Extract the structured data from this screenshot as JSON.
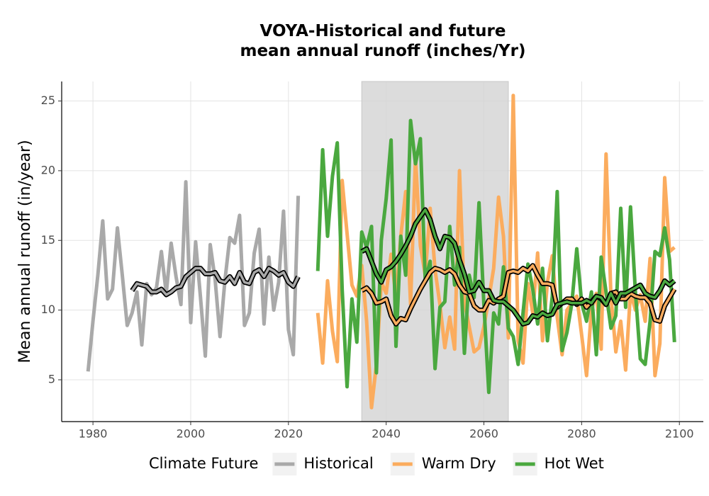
{
  "chart_data": {
    "type": "line",
    "title": "VOYA-Historical and future\nmean annual runoff (inches/Yr)",
    "y_label": "Mean annual runoff (in/year)",
    "legend_title": "Climate Future",
    "legend_position": "bottom",
    "grid": true,
    "shaded_range": [
      2035,
      2065
    ],
    "xlim": [
      1973.6,
      2104.9
    ],
    "ylim": [
      2.0,
      26.4
    ],
    "xticks": [
      1980,
      2000,
      2020,
      2040,
      2060,
      2080,
      2100
    ],
    "yticks": [
      5,
      10,
      15,
      20,
      25
    ],
    "series": [
      {
        "name": "Historical",
        "color": "#a9a9a9",
        "x": [
          1979,
          1980,
          1981,
          1982,
          1983,
          1984,
          1985,
          1986,
          1987,
          1988,
          1989,
          1990,
          1991,
          1992,
          1993,
          1994,
          1995,
          1996,
          1997,
          1998,
          1999,
          2000,
          2001,
          2002,
          2003,
          2004,
          2005,
          2006,
          2007,
          2008,
          2009,
          2010,
          2011,
          2012,
          2013,
          2014,
          2015,
          2016,
          2017,
          2018,
          2019,
          2020,
          2021,
          2022
        ],
        "values": [
          5.6,
          9.2,
          12.5,
          16.4,
          10.8,
          11.5,
          15.9,
          12.5,
          8.9,
          9.8,
          11.3,
          7.5,
          11.9,
          11.1,
          11.6,
          14.2,
          11.2,
          14.8,
          12.4,
          10.4,
          19.2,
          9.1,
          14.9,
          10.9,
          6.7,
          14.7,
          12.2,
          8.1,
          12.1,
          15.2,
          14.8,
          16.8,
          8.9,
          9.8,
          14.1,
          15.8,
          9.0,
          13.8,
          10.0,
          12.0,
          17.1,
          8.6,
          6.8,
          18.2
        ],
        "smoothed": [
          null,
          null,
          null,
          null,
          null,
          null,
          null,
          null,
          null,
          11.4,
          11.9,
          11.8,
          11.7,
          11.3,
          11.3,
          11.5,
          11.1,
          11.3,
          11.6,
          11.7,
          12.4,
          12.7,
          13.0,
          13.0,
          12.6,
          12.6,
          12.7,
          12.1,
          12.0,
          12.4,
          11.9,
          12.7,
          12.0,
          11.9,
          12.7,
          12.9,
          12.4,
          13.0,
          12.8,
          12.5,
          12.7,
          12.0,
          11.7,
          12.4
        ]
      },
      {
        "name": "Warm Dry",
        "color": "#fbac5e",
        "x": [
          2026,
          2027,
          2028,
          2029,
          2030,
          2031,
          2032,
          2033,
          2034,
          2035,
          2036,
          2037,
          2038,
          2039,
          2040,
          2041,
          2042,
          2043,
          2044,
          2045,
          2046,
          2047,
          2048,
          2049,
          2050,
          2051,
          2052,
          2053,
          2054,
          2055,
          2056,
          2057,
          2058,
          2059,
          2060,
          2061,
          2062,
          2063,
          2064,
          2065,
          2066,
          2067,
          2068,
          2069,
          2070,
          2071,
          2072,
          2073,
          2074,
          2075,
          2076,
          2077,
          2078,
          2079,
          2080,
          2081,
          2082,
          2083,
          2084,
          2085,
          2086,
          2087,
          2088,
          2089,
          2090,
          2091,
          2092,
          2093,
          2094,
          2095,
          2096,
          2097,
          2098,
          2099
        ],
        "values": [
          9.8,
          6.2,
          12.1,
          8.5,
          6.3,
          19.3,
          15.5,
          11.8,
          11.0,
          13.2,
          9.2,
          3.0,
          6.1,
          12.0,
          11.2,
          14.0,
          10.9,
          15.3,
          18.5,
          10.4,
          21.0,
          14.6,
          12.5,
          17.3,
          12.9,
          10.4,
          7.3,
          9.5,
          7.2,
          20.0,
          10.6,
          8.8,
          7.0,
          7.3,
          8.8,
          10.8,
          13.0,
          18.1,
          15.3,
          8.0,
          25.4,
          7.8,
          6.2,
          11.9,
          9.8,
          14.1,
          7.8,
          12.0,
          13.9,
          9.5,
          6.8,
          10.0,
          10.5,
          11.0,
          8.2,
          5.3,
          10.0,
          11.2,
          7.2,
          21.2,
          11.0,
          7.0,
          9.2,
          5.7,
          11.3,
          10.0,
          11.1,
          9.2,
          13.7,
          5.3,
          7.6,
          19.5,
          14.2,
          14.5
        ],
        "smoothed": [
          null,
          null,
          null,
          null,
          null,
          null,
          null,
          null,
          null,
          11.4,
          11.6,
          11.2,
          10.5,
          10.6,
          10.8,
          9.6,
          9.0,
          9.4,
          9.3,
          10.1,
          10.8,
          11.5,
          12.1,
          12.7,
          13.0,
          12.9,
          12.7,
          12.9,
          12.6,
          11.8,
          11.3,
          11.2,
          10.3,
          10.0,
          10.0,
          10.7,
          10.5,
          10.8,
          11.0,
          12.7,
          12.8,
          12.7,
          13.0,
          12.8,
          13.2,
          12.5,
          11.9,
          11.9,
          11.8,
          10.2,
          10.5,
          10.8,
          10.8,
          10.4,
          10.8,
          10.2,
          10.6,
          11.0,
          10.8,
          10.4,
          11.2,
          11.3,
          10.8,
          10.8,
          11.2,
          11.0,
          10.9,
          10.9,
          10.5,
          9.3,
          9.2,
          10.3,
          10.9,
          11.5
        ]
      },
      {
        "name": "Hot Wet",
        "color": "#4aa83f",
        "x": [
          2026,
          2027,
          2028,
          2029,
          2030,
          2031,
          2032,
          2033,
          2034,
          2035,
          2036,
          2037,
          2038,
          2039,
          2040,
          2041,
          2042,
          2043,
          2044,
          2045,
          2046,
          2047,
          2048,
          2049,
          2050,
          2051,
          2052,
          2053,
          2054,
          2055,
          2056,
          2057,
          2058,
          2059,
          2060,
          2061,
          2062,
          2063,
          2064,
          2065,
          2066,
          2067,
          2068,
          2069,
          2070,
          2071,
          2072,
          2073,
          2074,
          2075,
          2076,
          2077,
          2078,
          2079,
          2080,
          2081,
          2082,
          2083,
          2084,
          2085,
          2086,
          2087,
          2088,
          2089,
          2090,
          2091,
          2092,
          2093,
          2094,
          2095,
          2096,
          2097,
          2098,
          2099
        ],
        "values": [
          12.8,
          21.5,
          15.3,
          19.6,
          22.0,
          11.5,
          4.5,
          10.8,
          7.7,
          15.6,
          14.5,
          16.0,
          5.5,
          15.0,
          18.0,
          22.2,
          7.4,
          15.3,
          12.5,
          23.6,
          20.5,
          22.3,
          12.1,
          13.5,
          5.8,
          10.2,
          10.6,
          16.0,
          11.8,
          14.5,
          6.9,
          12.5,
          10.9,
          17.7,
          10.4,
          4.1,
          9.8,
          9.0,
          13.1,
          8.7,
          8.1,
          6.1,
          9.8,
          13.3,
          11.5,
          9.0,
          13.0,
          7.8,
          11.0,
          18.5,
          7.1,
          8.4,
          10.5,
          14.4,
          10.5,
          9.2,
          11.3,
          6.8,
          13.8,
          11.3,
          8.7,
          9.6,
          17.3,
          10.2,
          17.4,
          11.3,
          6.5,
          6.1,
          9.2,
          14.2,
          13.9,
          15.9,
          13.6,
          7.7
        ],
        "smoothed": [
          null,
          null,
          null,
          null,
          null,
          null,
          null,
          null,
          null,
          14.2,
          14.4,
          13.5,
          12.6,
          12.0,
          12.9,
          13.1,
          13.5,
          14.0,
          14.6,
          15.3,
          16.2,
          16.7,
          17.2,
          16.5,
          15.3,
          14.4,
          15.3,
          15.2,
          14.8,
          13.6,
          12.6,
          11.3,
          11.4,
          12.0,
          11.4,
          11.4,
          10.7,
          10.6,
          10.6,
          10.3,
          10.0,
          9.5,
          9.0,
          9.1,
          9.6,
          9.5,
          9.8,
          9.6,
          9.7,
          10.4,
          10.5,
          10.6,
          10.5,
          10.5,
          10.5,
          10.7,
          10.5,
          11.0,
          10.9,
          10.4,
          11.2,
          10.5,
          11.2,
          11.2,
          11.4,
          11.6,
          11.8,
          11.2,
          11.0,
          10.9,
          11.4,
          12.1,
          11.8,
          12.1
        ]
      }
    ]
  }
}
